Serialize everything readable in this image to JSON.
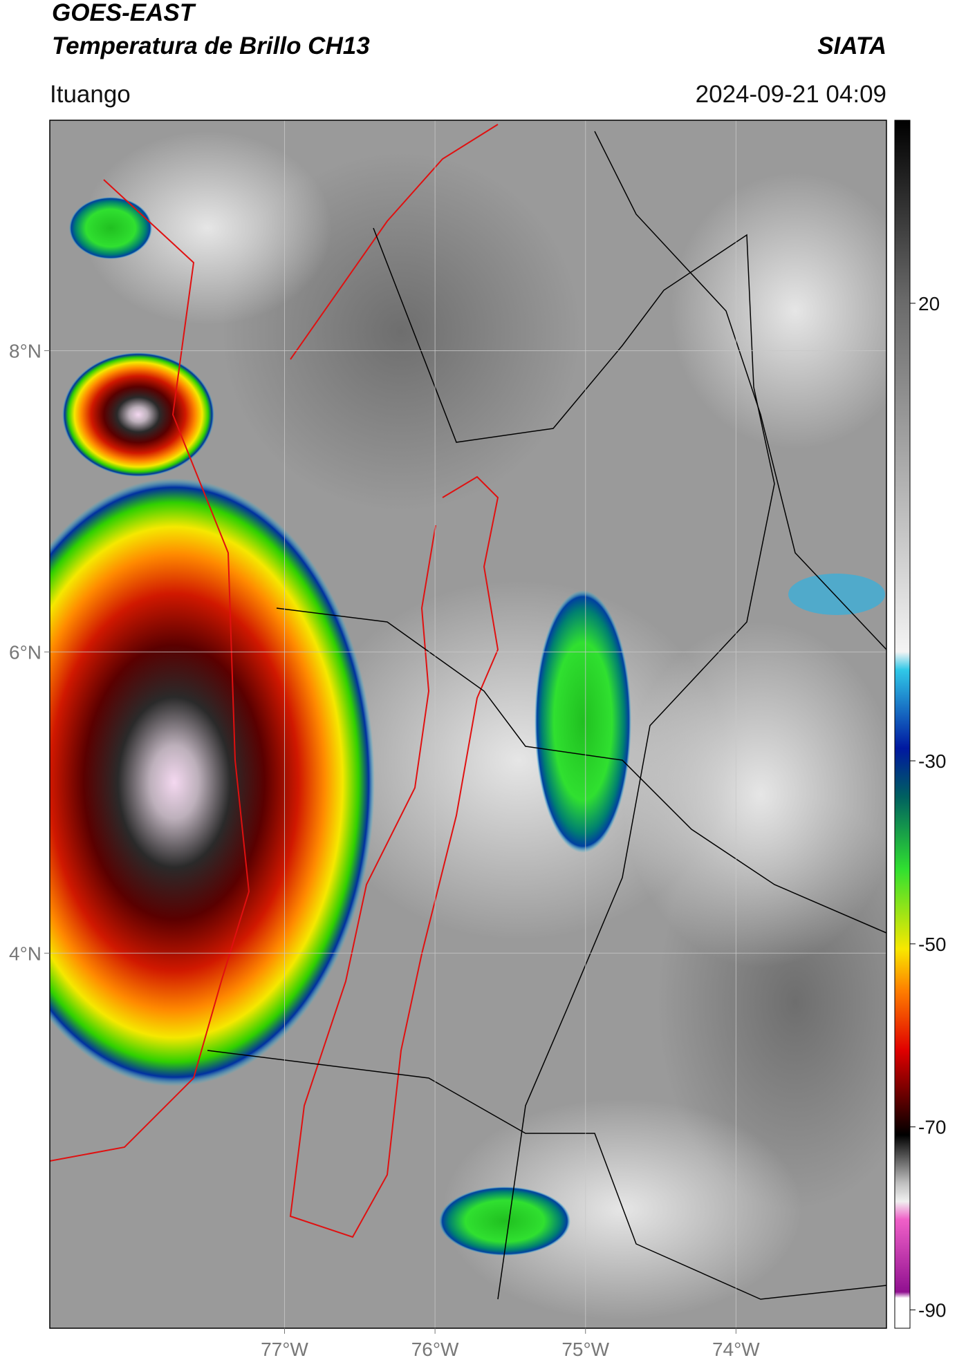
{
  "header": {
    "title": "GOES-EAST",
    "subtitle": "Temperatura de Brillo CH13",
    "source": "SIATA",
    "location": "Ituango",
    "datetime": "2024-09-21 04:09"
  },
  "map": {
    "lonlim": [
      -78.56,
      -73.0
    ],
    "latlim": [
      1.51,
      9.53
    ],
    "lonticks": [
      {
        "value": -77,
        "label": "77°W"
      },
      {
        "value": -76,
        "label": "76°W"
      },
      {
        "value": -75,
        "label": "75°W"
      },
      {
        "value": -74,
        "label": "74°W"
      }
    ],
    "latticks": [
      {
        "value": 8,
        "label": "8°N"
      },
      {
        "value": 6,
        "label": "6°N"
      },
      {
        "value": 4,
        "label": "4°N"
      }
    ],
    "grid": true
  },
  "colorbar": {
    "lim": [
      -92,
      40
    ],
    "ticks": [
      20,
      -30,
      -50,
      -70,
      -90
    ]
  }
}
